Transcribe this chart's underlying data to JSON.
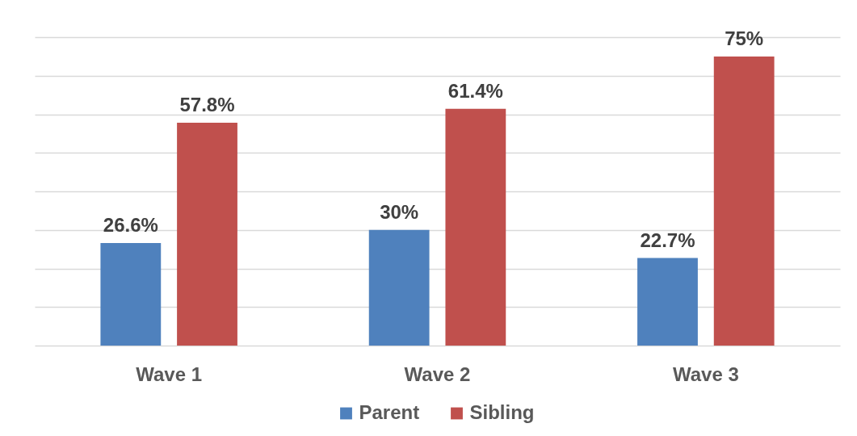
{
  "chart_data": {
    "type": "bar",
    "categories": [
      "Wave 1",
      "Wave 2",
      "Wave 3"
    ],
    "series": [
      {
        "name": "Parent",
        "color": "#4f81bd",
        "values": [
          26.6,
          30,
          22.7
        ],
        "value_labels": [
          "26.6%",
          "30%",
          "22.7%"
        ]
      },
      {
        "name": "Sibling",
        "color": "#c0504d",
        "values": [
          57.8,
          61.4,
          75
        ],
        "value_labels": [
          "57.8%",
          "61.4%",
          "75%"
        ]
      }
    ],
    "ylim": [
      0,
      80
    ],
    "yticks": [
      {
        "value": 0,
        "label": null
      },
      {
        "value": 10,
        "label": null
      },
      {
        "value": 20,
        "label": null
      },
      {
        "value": 30,
        "label": null
      },
      {
        "value": 40,
        "label": null
      },
      {
        "value": 50,
        "label": null
      },
      {
        "value": 60,
        "label": null
      },
      {
        "value": 70,
        "label": null
      },
      {
        "value": 80,
        "label": null
      }
    ],
    "grid": "y",
    "legend": "bottom",
    "tick_labels": "x"
  }
}
